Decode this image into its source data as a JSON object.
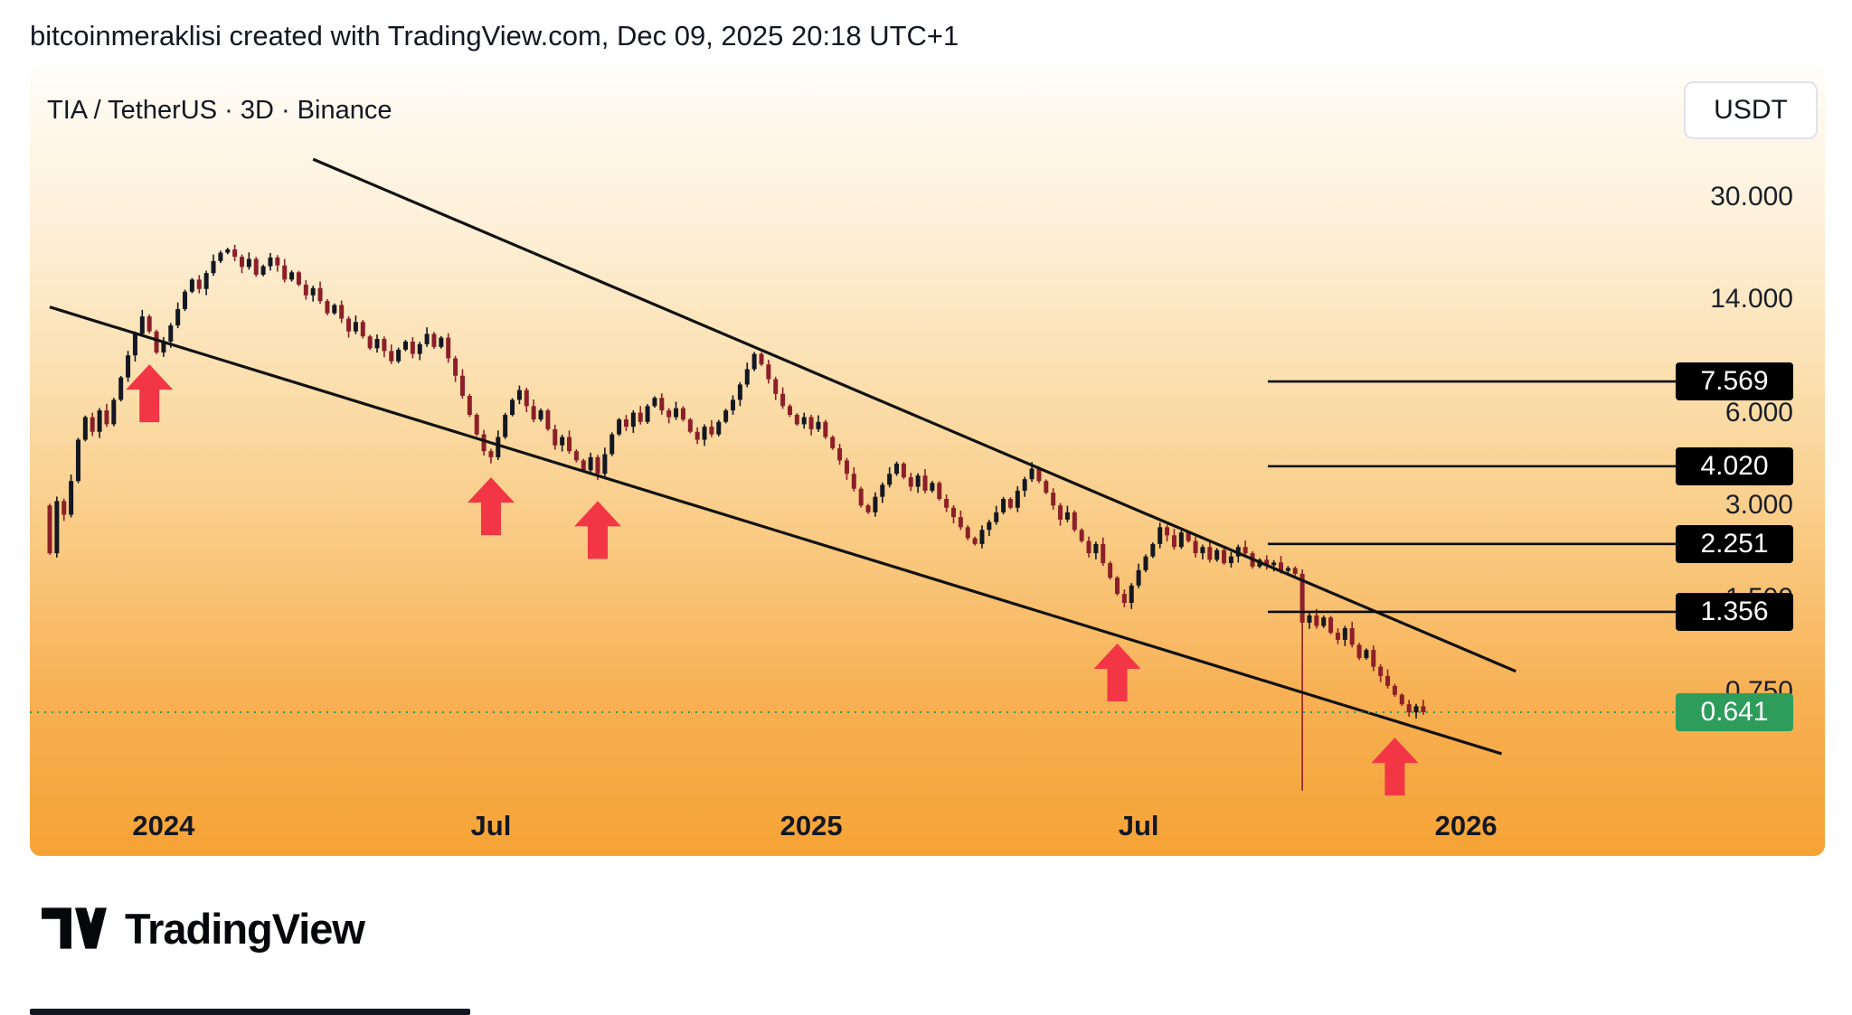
{
  "header": {
    "attribution": "bitcoinmeraklisi created with TradingView.com, Dec 09, 2025 20:18 UTC+1"
  },
  "legend": {
    "symbol_text": "TIA / TetherUS · 3D · Binance"
  },
  "toolbar": {
    "currency_button": "USDT"
  },
  "footer": {
    "brand": "TradingView"
  },
  "colors": {
    "candle_up": "#131722",
    "candle_down": "#8c1f28",
    "arrow_red": "#f23645",
    "trendline_black": "#111111",
    "level_line_black": "#0a0a0a",
    "badge_black": "#000000",
    "current_price_green": "#2E9D5B",
    "axis_text": "#1b1f27"
  },
  "chart_data": {
    "type": "candlestick",
    "title": "TIA / TetherUS · 3D · Binance",
    "symbol": "TIA / TetherUS",
    "interval": "3D",
    "exchange": "Binance",
    "scale": "log",
    "ylim": [
      0.35,
      45
    ],
    "grid": false,
    "y_axis": {
      "side": "right",
      "ticks": [
        {
          "label": "30.000",
          "price": 30
        },
        {
          "label": "14.000",
          "price": 14
        },
        {
          "label": "6.000",
          "price": 6
        },
        {
          "label": "3.000",
          "price": 3
        },
        {
          "label": "1.500",
          "price": 1.5
        },
        {
          "label": "0.750",
          "price": 0.75
        }
      ]
    },
    "x_axis": {
      "labels": [
        {
          "label": "2024",
          "index": 16
        },
        {
          "label": "Jul",
          "index": 62
        },
        {
          "label": "2025",
          "index": 107
        },
        {
          "label": "Jul",
          "index": 153
        },
        {
          "label": "2026",
          "index": 199
        }
      ]
    },
    "levels": [
      {
        "label": "7.569",
        "price": 7.569
      },
      {
        "label": "4.020",
        "price": 4.02
      },
      {
        "label": "2.251",
        "price": 2.251
      },
      {
        "label": "1.356",
        "price": 1.356
      }
    ],
    "current_price": {
      "label": "0.641",
      "price": 0.641
    },
    "first_open": 3.0,
    "closes": [
      2.1,
      3.1,
      2.8,
      3.6,
      4.9,
      5.8,
      5.2,
      6.1,
      5.5,
      6.6,
      7.8,
      9.2,
      10.8,
      12.3,
      11.0,
      9.4,
      10.2,
      11.5,
      13.0,
      14.8,
      16.2,
      15.1,
      17.0,
      18.6,
      19.8,
      20.3,
      19.2,
      17.8,
      18.9,
      16.8,
      17.9,
      19.1,
      18.0,
      16.2,
      17.1,
      15.6,
      14.4,
      15.2,
      13.8,
      12.6,
      13.4,
      12.1,
      11.0,
      11.8,
      10.6,
      9.7,
      10.4,
      9.5,
      8.8,
      9.6,
      10.2,
      9.3,
      10.0,
      10.8,
      9.8,
      10.5,
      9.0,
      7.9,
      6.8,
      5.9,
      5.1,
      4.5,
      4.3,
      5.0,
      5.9,
      6.6,
      7.1,
      6.3,
      5.7,
      6.1,
      5.3,
      4.7,
      5.0,
      4.5,
      4.2,
      3.9,
      4.3,
      3.8,
      4.4,
      5.1,
      5.7,
      5.4,
      6.0,
      5.6,
      6.3,
      6.7,
      6.1,
      5.8,
      6.2,
      5.7,
      5.2,
      4.9,
      5.4,
      5.1,
      5.6,
      6.1,
      6.6,
      7.4,
      8.3,
      9.3,
      8.6,
      7.7,
      6.9,
      6.3,
      5.9,
      5.5,
      5.8,
      5.3,
      5.6,
      5.0,
      4.6,
      4.2,
      3.8,
      3.4,
      3.0,
      2.85,
      3.2,
      3.5,
      3.8,
      4.1,
      3.7,
      3.45,
      3.75,
      3.35,
      3.55,
      3.15,
      2.95,
      2.75,
      2.55,
      2.35,
      2.25,
      2.5,
      2.65,
      2.85,
      3.15,
      2.95,
      3.35,
      3.65,
      3.95,
      3.6,
      3.3,
      3.0,
      2.7,
      2.85,
      2.5,
      2.3,
      2.1,
      2.25,
      1.95,
      1.75,
      1.55,
      1.45,
      1.65,
      1.85,
      2.05,
      2.25,
      2.55,
      2.4,
      2.2,
      2.45,
      2.3,
      2.1,
      2.2,
      2.0,
      2.15,
      1.95,
      2.05,
      2.2,
      2.1,
      1.9,
      2.0,
      1.92,
      1.96,
      1.84,
      1.88,
      1.8,
      1.25,
      1.32,
      1.22,
      1.3,
      1.16,
      1.1,
      1.2,
      1.06,
      0.96,
      1.02,
      0.9,
      0.84,
      0.78,
      0.73,
      0.68,
      0.64,
      0.67,
      0.641
    ],
    "wick_overrides": {
      "176": {
        "low": 0.357
      }
    },
    "trendlines": [
      {
        "name": "channel-top",
        "start_index": 37,
        "start_price": 39.8,
        "end_index": 206,
        "end_price": 0.87
      },
      {
        "name": "channel-bottom",
        "start_index": 0,
        "start_price": 13.2,
        "end_index": 204,
        "end_price": 0.47
      }
    ],
    "arrows": [
      {
        "index": 14,
        "price": 8.6
      },
      {
        "index": 62,
        "price": 3.7
      },
      {
        "index": 77,
        "price": 3.1
      },
      {
        "index": 150,
        "price": 1.07
      },
      {
        "index": 189,
        "price": 0.53
      }
    ]
  }
}
